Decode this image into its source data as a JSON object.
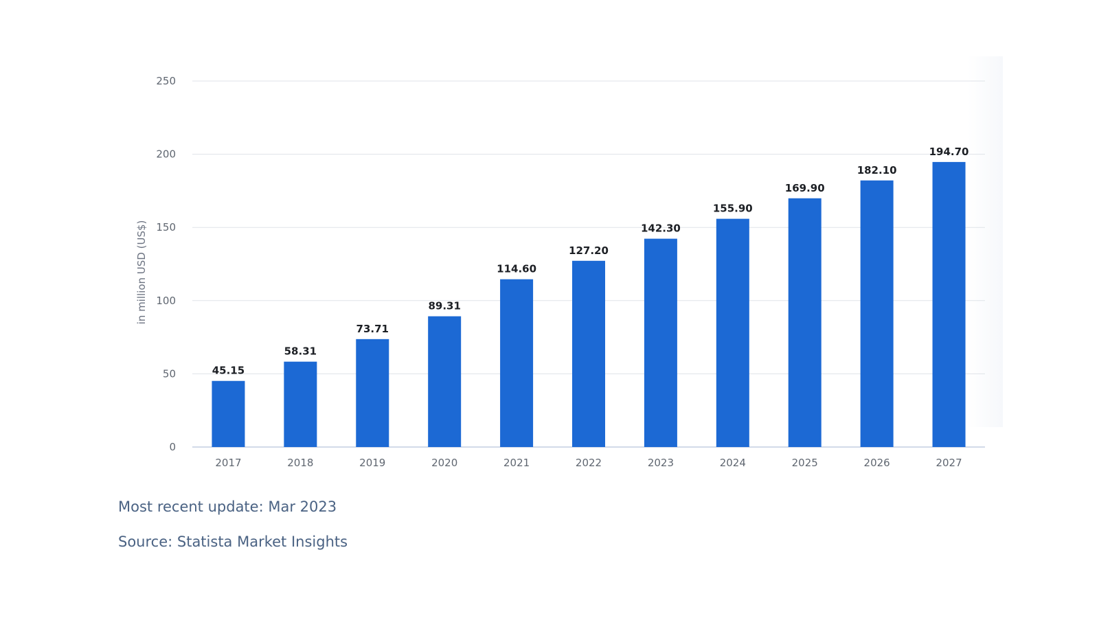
{
  "chart_data": {
    "type": "bar",
    "title": "",
    "xlabel": "",
    "ylabel": "in million USD (US$)",
    "ylim": [
      0,
      250
    ],
    "yticks": [
      0,
      50,
      100,
      150,
      200,
      250
    ],
    "grid": true,
    "legend": "none",
    "categories": [
      "2017",
      "2018",
      "2019",
      "2020",
      "2021",
      "2022",
      "2023",
      "2024",
      "2025",
      "2026",
      "2027"
    ],
    "values": [
      45.15,
      58.31,
      73.71,
      89.31,
      114.6,
      127.2,
      142.3,
      155.9,
      169.9,
      182.1,
      194.7
    ],
    "value_labels": [
      "45.15",
      "58.31",
      "73.71",
      "89.31",
      "114.60",
      "127.20",
      "142.30",
      "155.90",
      "169.90",
      "182.10",
      "194.70"
    ],
    "bar_color": "#1c69d4",
    "grid_color": "#dfe3e8",
    "axis_color": "#c3cde0"
  },
  "footer": {
    "update": "Most recent update: Mar 2023",
    "source": "Source: Statista Market Insights"
  }
}
